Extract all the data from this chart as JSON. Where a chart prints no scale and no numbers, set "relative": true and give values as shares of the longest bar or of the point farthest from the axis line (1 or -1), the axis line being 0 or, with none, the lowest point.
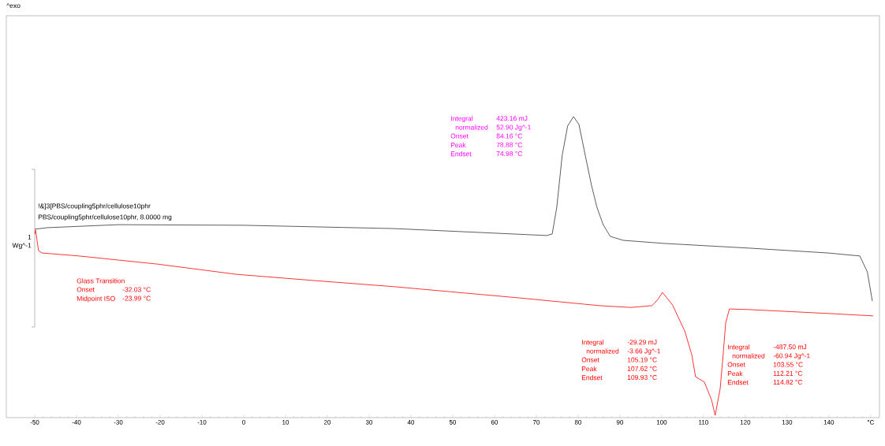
{
  "chart_data": {
    "type": "line",
    "relative": true,
    "ylabel": "1 Wg^-1",
    "xlim": [
      -56.8,
      152.1
    ],
    "xticks": [
      -50,
      -40,
      -30,
      -20,
      -10,
      0,
      10,
      20,
      30,
      40,
      50,
      60,
      70,
      80,
      90,
      100,
      110,
      120,
      130,
      140,
      {
        "value": 150,
        "label": "°C"
      }
    ],
    "series": [
      {
        "color": "#333333",
        "x": [
          -50,
          -47,
          -30,
          0,
          36,
          72.5,
          73.8,
          74.9,
          76.2,
          77.5,
          78.9,
          80.2,
          81.7,
          83.2,
          84.5,
          86.0,
          87.7,
          90.8,
          100.2,
          121,
          139.8,
          147.4,
          149.2,
          150.4
        ],
        "values": [
          0.626,
          0.631,
          0.641,
          0.639,
          0.628,
          0.605,
          0.61,
          0.699,
          0.872,
          0.969,
          1.0,
          0.974,
          0.872,
          0.772,
          0.699,
          0.641,
          0.602,
          0.589,
          0.579,
          0.563,
          0.547,
          0.537,
          0.484,
          0.387
        ]
      },
      {
        "color": "#ff0000",
        "x": [
          -50,
          -49.8,
          -49.1,
          -48.3,
          -39.4,
          -20.6,
          -1.7,
          17.2,
          36.0,
          65.7,
          85.1,
          92.6,
          97.7,
          99.1,
          100.2,
          102.6,
          105.5,
          107.2,
          108.1,
          110.2,
          111.9,
          112.8,
          114.0,
          114.7,
          115.3,
          116.2,
          120.9,
          139.8,
          150.6
        ],
        "values": [
          0.61,
          0.623,
          0.555,
          0.547,
          0.537,
          0.51,
          0.476,
          0.455,
          0.435,
          0.398,
          0.372,
          0.366,
          0.372,
          0.393,
          0.416,
          0.374,
          0.288,
          0.209,
          0.136,
          0.118,
          0.06,
          0.008,
          0.097,
          0.209,
          0.314,
          0.361,
          0.359,
          0.346,
          0.338
        ]
      }
    ],
    "annotations": [
      "^exo",
      "!&]3[PBS/coupling5phr/cellulose10phr",
      "PBS/coupling5phr/cellulose10phr, 8.0000 mg",
      "Integral",
      "423.16 mJ",
      "normalized",
      "52.90 Jg^-1",
      "Onset",
      "84.16 °C",
      "Peak",
      "78.88 °C",
      "Endset",
      "74.98 °C",
      "Glass Transition",
      "Onset",
      "-32.03 °C",
      "Midpoint ISO",
      "-23.99 °C",
      "Integral",
      "-29.29 mJ",
      "normalized",
      "-3.66 Jg^-1",
      "Onset",
      "105.19 °C",
      "Peak",
      "107.62 °C",
      "Endset",
      "109.93 °C",
      "Integral",
      "-487.50 mJ",
      "normalized",
      "-60.94 Jg^-1",
      "Onset",
      "103.55 °C",
      "Peak",
      "112.21 °C",
      "Endset",
      "114.82 °C"
    ]
  }
}
